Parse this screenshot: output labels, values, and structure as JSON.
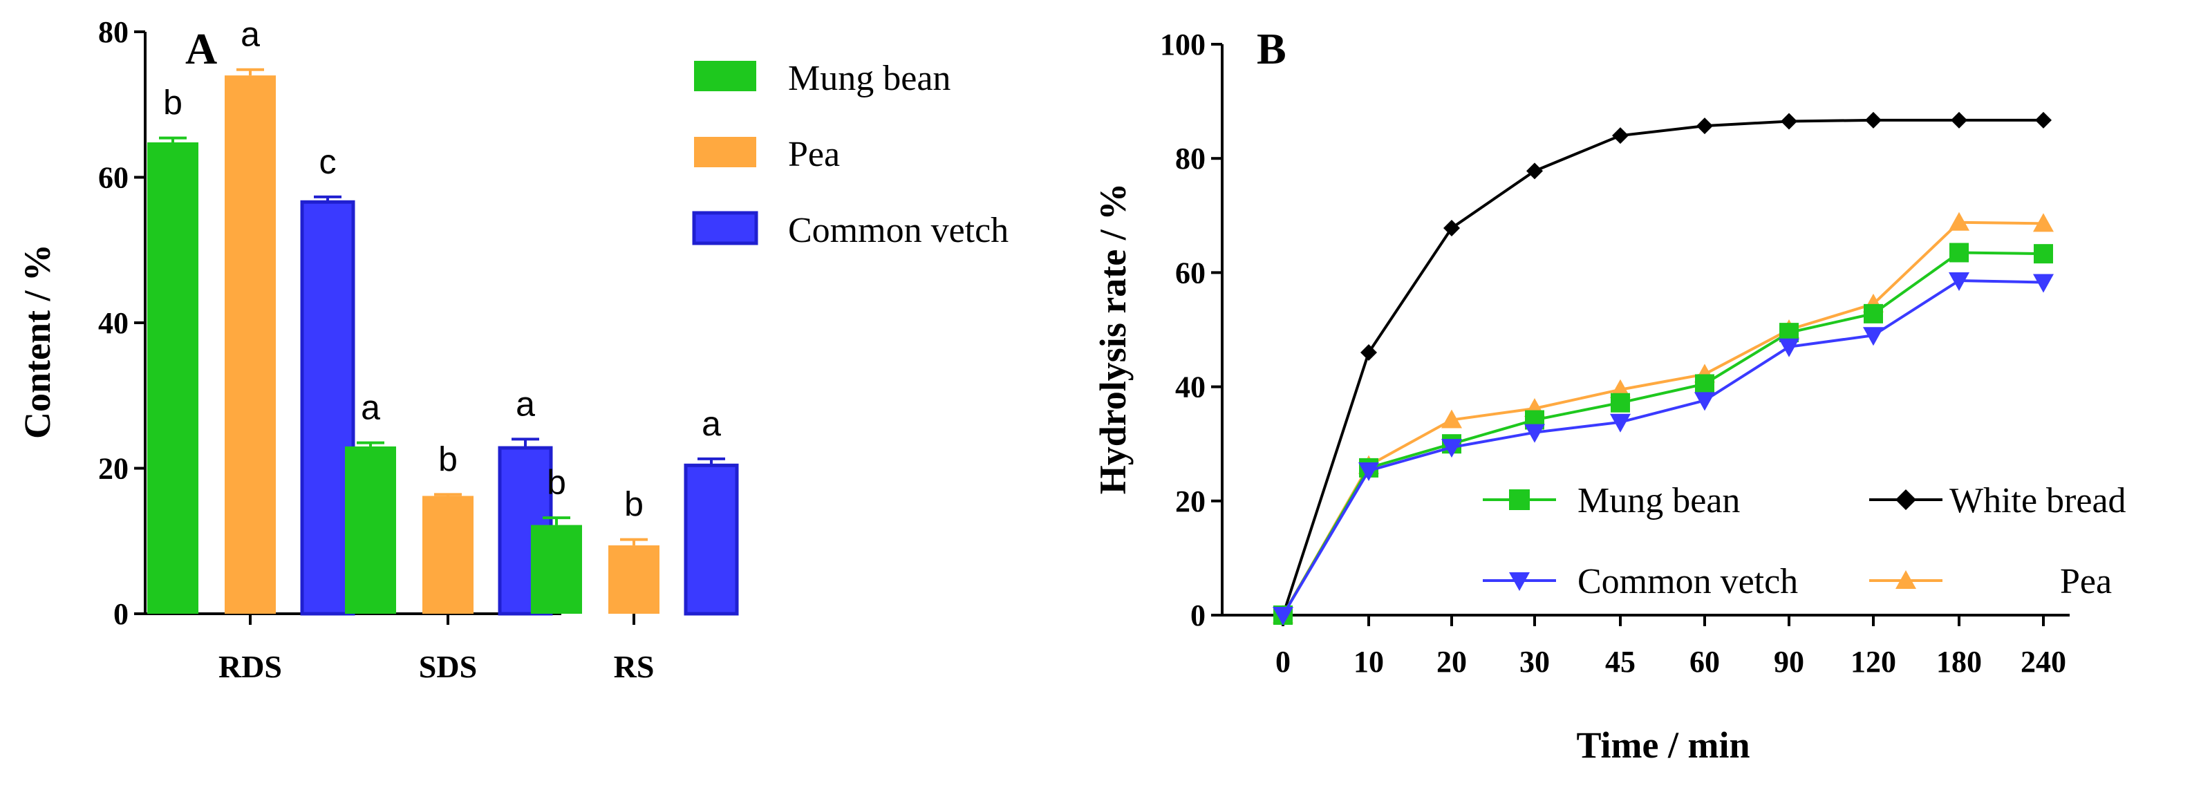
{
  "colors": {
    "mung_bean": "#1ec81e",
    "pea": "#ffa940",
    "common_vetch": "#3a3aff",
    "white_bread": "#000000"
  },
  "chart_data": [
    {
      "id": "A",
      "type": "bar",
      "panel_label": "A",
      "categories": [
        "RDS",
        "SDS",
        "RS"
      ],
      "ylabel": "Content / %",
      "xlabel": "",
      "ylim": [
        0,
        80
      ],
      "yticks": [
        0,
        20,
        40,
        60,
        80
      ],
      "series": [
        {
          "name": "Mung bean",
          "color_key": "mung_bean",
          "values": [
            64.8,
            23.0,
            12.2
          ],
          "errors": [
            0.6,
            0.5,
            1.0
          ],
          "letters": [
            "b",
            "a",
            "b"
          ]
        },
        {
          "name": "Pea",
          "color_key": "pea",
          "values": [
            74.0,
            16.2,
            9.4
          ],
          "errors": [
            0.8,
            0.2,
            0.8
          ],
          "letters": [
            "a",
            "b",
            "b"
          ]
        },
        {
          "name": "Common vetch",
          "color_key": "common_vetch",
          "values": [
            56.6,
            22.8,
            20.4
          ],
          "errors": [
            0.7,
            1.2,
            0.9
          ],
          "letters": [
            "c",
            "a",
            "a"
          ]
        }
      ],
      "legend_position": "top-right"
    },
    {
      "id": "B",
      "type": "line",
      "panel_label": "B",
      "x": [
        "0",
        "10",
        "20",
        "30",
        "45",
        "60",
        "90",
        "120",
        "180",
        "240"
      ],
      "xlabel": "Time / min",
      "ylabel": "Hydrolysis rate / %",
      "ylim": [
        0,
        100
      ],
      "yticks": [
        0,
        20,
        40,
        60,
        80,
        100
      ],
      "series": [
        {
          "name": "Mung bean",
          "marker": "square",
          "color_key": "mung_bean",
          "values": [
            0,
            25.8,
            30.0,
            34.2,
            37.2,
            40.5,
            49.5,
            52.8,
            63.5,
            63.3
          ]
        },
        {
          "name": "White bread",
          "marker": "diamond",
          "color_key": "white_bread",
          "values": [
            0,
            46.0,
            67.8,
            77.8,
            84.0,
            85.7,
            86.5,
            86.7,
            86.7,
            86.7
          ]
        },
        {
          "name": "Common vetch",
          "marker": "triangle-down",
          "color_key": "common_vetch",
          "values": [
            0,
            25.3,
            29.4,
            32.0,
            33.8,
            37.6,
            47.0,
            49.0,
            58.6,
            58.3
          ]
        },
        {
          "name": "Pea",
          "marker": "triangle-up",
          "color_key": "pea",
          "values": [
            0,
            26.2,
            34.2,
            36.2,
            39.5,
            42.2,
            50.0,
            54.5,
            68.8,
            68.6
          ]
        }
      ],
      "legend_position": "bottom-right"
    }
  ]
}
